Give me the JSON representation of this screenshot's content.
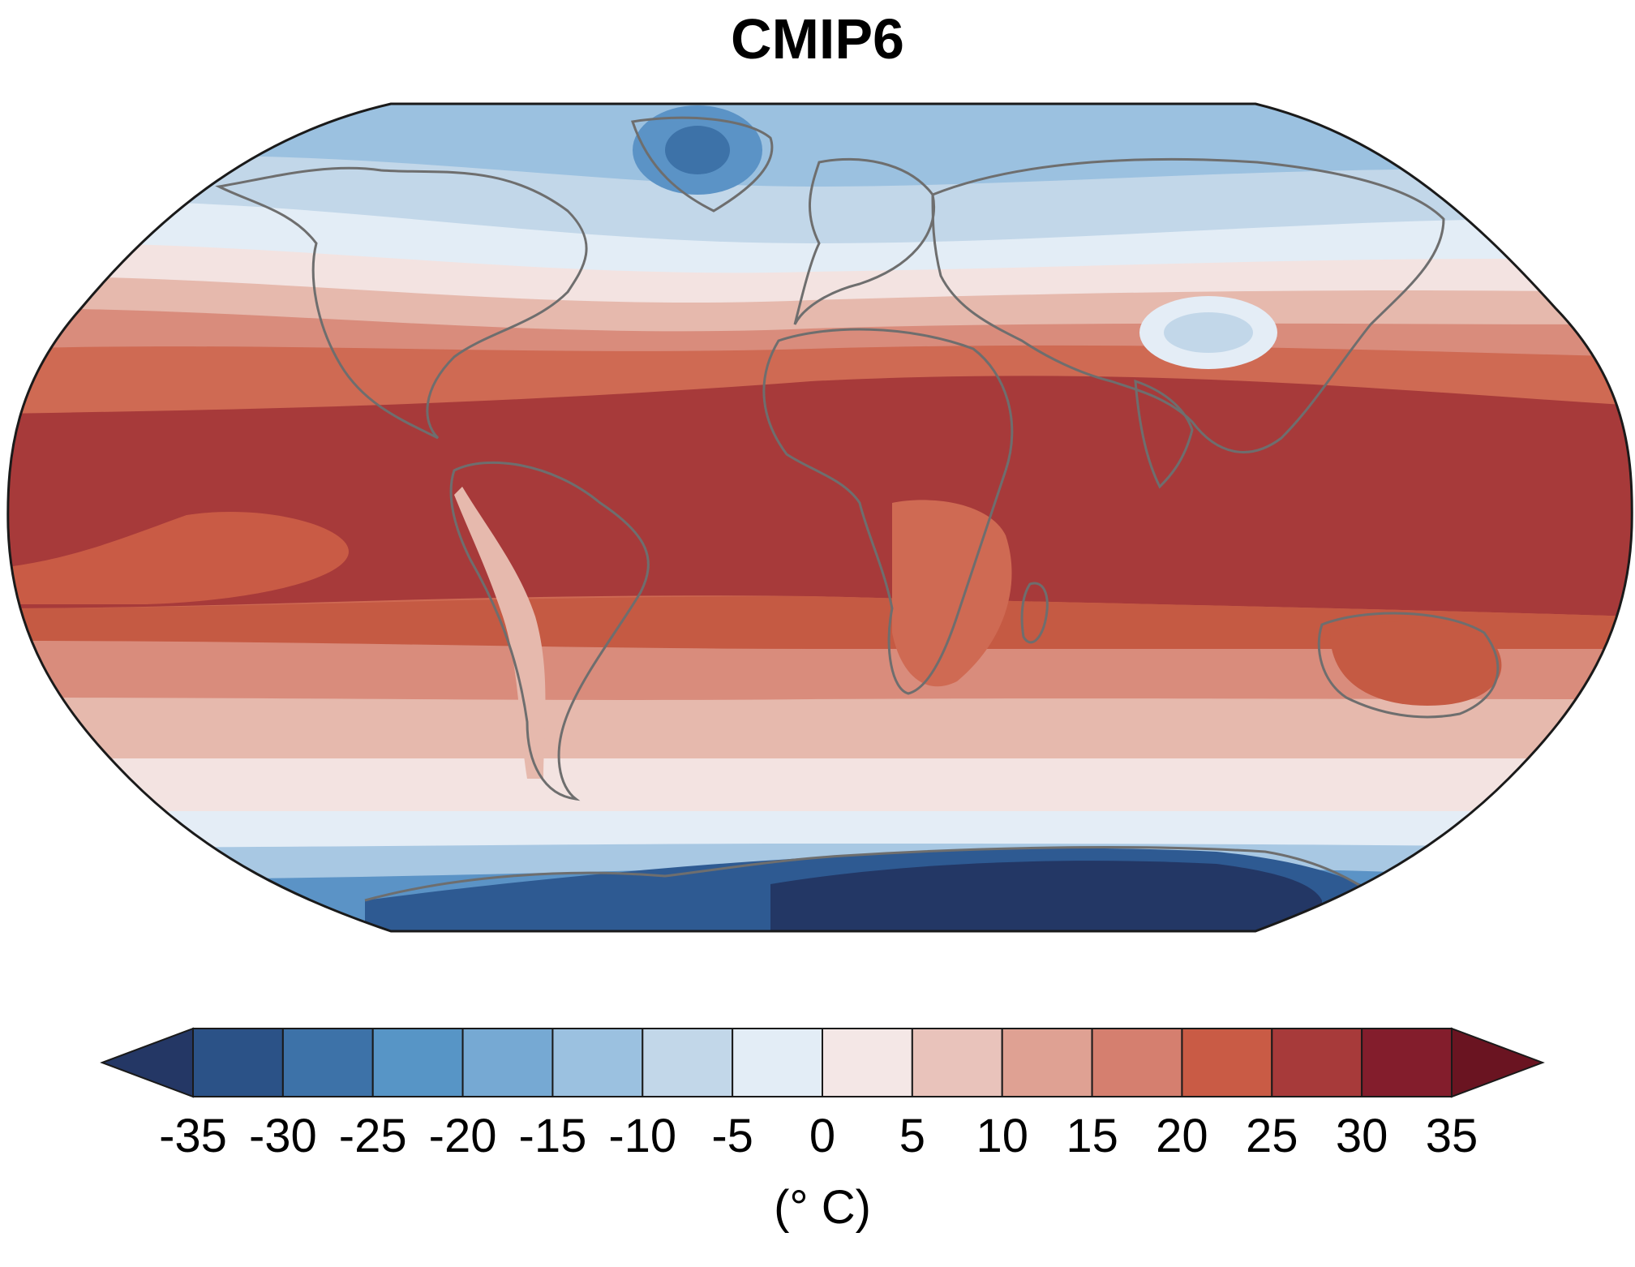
{
  "title": "CMIP6",
  "colorbar": {
    "ticks": [
      "-35",
      "-30",
      "-25",
      "-20",
      "-15",
      "-10",
      "-5",
      "0",
      "5",
      "10",
      "15",
      "20",
      "25",
      "30",
      "35"
    ],
    "unit": "(° C)",
    "colors": [
      "#243765",
      "#2b5287",
      "#3d72a8",
      "#5795c6",
      "#76a9d3",
      "#9bc1e0",
      "#c2d7e9",
      "#e3edf6",
      "#f4e7e6",
      "#e9c3bb",
      "#dfa193",
      "#d57f6f",
      "#c95b45",
      "#a73a3a",
      "#831d2c",
      "#6a1421"
    ]
  },
  "map": {
    "projection": "Robinson",
    "field": "surface air temperature",
    "band_colors": [
      "#233765",
      "#2e5a92",
      "#5b93c6",
      "#a8c8e3",
      "#e4edf6",
      "#f3e3e1",
      "#e6b9ad",
      "#d98c7c",
      "#cf6a53",
      "#c55a43",
      "#a73a3a"
    ]
  }
}
